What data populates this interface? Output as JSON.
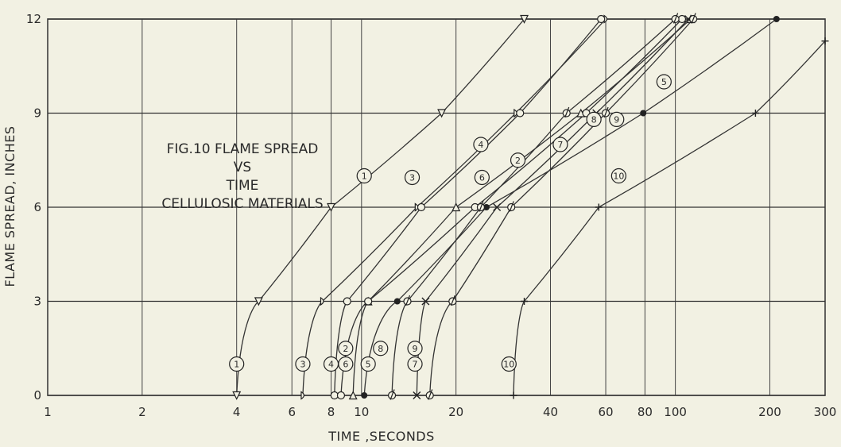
{
  "chart_data": {
    "type": "line",
    "title_lines": [
      "FIG.10 FLAME SPREAD",
      "VS",
      "TIME",
      "CELLULOSIC MATERIALS"
    ],
    "xlabel": "TIME ,SECONDS",
    "ylabel": "FLAME SPREAD, INCHES",
    "xscale": "log",
    "xlim": [
      1,
      300
    ],
    "ylim": [
      0,
      12
    ],
    "x_ticks": [
      1,
      2,
      4,
      6,
      8,
      10,
      20,
      40,
      60,
      80,
      100,
      200,
      300
    ],
    "y_ticks": [
      0,
      3,
      6,
      9,
      12
    ],
    "grid": true,
    "legend": "none",
    "series": [
      {
        "name": "1",
        "marker": "triangle-down",
        "points": [
          [
            4.0,
            0
          ],
          [
            4.7,
            3
          ],
          [
            8.0,
            6
          ],
          [
            18,
            9
          ],
          [
            33,
            12
          ]
        ]
      },
      {
        "name": "2",
        "marker": "triangle",
        "points": [
          [
            9.4,
            0
          ],
          [
            10.5,
            3
          ],
          [
            20,
            6
          ],
          [
            50,
            9
          ],
          [
            112,
            12
          ]
        ]
      },
      {
        "name": "3",
        "marker": "d",
        "points": [
          [
            6.5,
            0
          ],
          [
            7.5,
            3
          ],
          [
            15,
            6
          ],
          [
            31,
            9
          ],
          [
            60,
            12
          ]
        ]
      },
      {
        "name": "4",
        "marker": "circle",
        "points": [
          [
            8.2,
            0
          ],
          [
            9.0,
            3
          ],
          [
            15.5,
            6
          ],
          [
            32,
            9
          ],
          [
            58,
            12
          ]
        ]
      },
      {
        "name": "5",
        "marker": "dot",
        "points": [
          [
            10.2,
            0
          ],
          [
            13.0,
            3
          ],
          [
            25,
            6
          ],
          [
            79,
            9
          ],
          [
            210,
            12
          ]
        ]
      },
      {
        "name": "6",
        "marker": "circle",
        "points": [
          [
            8.6,
            0
          ],
          [
            10.5,
            3
          ],
          [
            23,
            6
          ],
          [
            52,
            9
          ],
          [
            105,
            12
          ]
        ]
      },
      {
        "name": "7",
        "marker": "x",
        "points": [
          [
            15.0,
            0
          ],
          [
            16.0,
            3
          ],
          [
            27,
            6
          ],
          [
            56,
            9
          ],
          [
            110,
            12
          ]
        ]
      },
      {
        "name": "8",
        "marker": "slash-circle",
        "points": [
          [
            12.5,
            0
          ],
          [
            14.0,
            3
          ],
          [
            24,
            6
          ],
          [
            45,
            9
          ],
          [
            100,
            12
          ]
        ]
      },
      {
        "name": "9",
        "marker": "slash-circle",
        "points": [
          [
            16.5,
            0
          ],
          [
            19.5,
            3
          ],
          [
            30,
            6
          ],
          [
            60,
            9
          ],
          [
            114,
            12
          ]
        ]
      },
      {
        "name": "10",
        "marker": "plus",
        "points": [
          [
            30.5,
            0
          ],
          [
            33.0,
            3
          ],
          [
            57,
            6
          ],
          [
            180,
            9
          ],
          [
            300,
            11.3
          ]
        ]
      }
    ],
    "curve_labels": [
      {
        "text": "1",
        "x": 4.0,
        "y": 1.0
      },
      {
        "text": "3",
        "x": 6.5,
        "y": 1.0
      },
      {
        "text": "4",
        "x": 8.0,
        "y": 1.0
      },
      {
        "text": "2",
        "x": 8.9,
        "y": 1.5
      },
      {
        "text": "6",
        "x": 8.9,
        "y": 1.0
      },
      {
        "text": "5",
        "x": 10.5,
        "y": 1.0
      },
      {
        "text": "8",
        "x": 11.5,
        "y": 1.5
      },
      {
        "text": "9",
        "x": 14.8,
        "y": 1.5
      },
      {
        "text": "7",
        "x": 14.8,
        "y": 1.0
      },
      {
        "text": "10",
        "x": 29.5,
        "y": 1.0
      },
      {
        "text": "1",
        "x": 10.2,
        "y": 7.0
      },
      {
        "text": "3",
        "x": 14.5,
        "y": 6.95
      },
      {
        "text": "4",
        "x": 24,
        "y": 8.0
      },
      {
        "text": "6",
        "x": 24.2,
        "y": 6.95
      },
      {
        "text": "2",
        "x": 31.5,
        "y": 7.5
      },
      {
        "text": "7",
        "x": 43,
        "y": 8.0
      },
      {
        "text": "8",
        "x": 55,
        "y": 8.8
      },
      {
        "text": "9",
        "x": 65,
        "y": 8.8
      },
      {
        "text": "5",
        "x": 92,
        "y": 10.0
      },
      {
        "text": "10",
        "x": 66,
        "y": 7.0
      }
    ]
  }
}
